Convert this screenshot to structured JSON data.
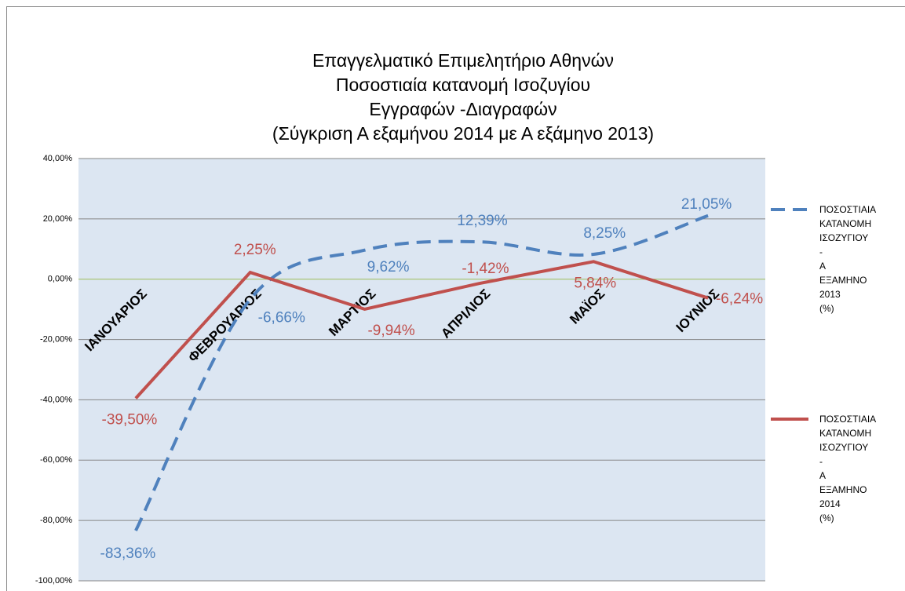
{
  "chart_data": {
    "type": "line",
    "title": "Επαγγελματικό Επιμελητήριο Αθηνών\nΠοσοστιαία κατανομή Ισοζυγίου\nΕγγραφών -Διαγραφών\n(Σύγκριση Α εξαμήνου 2014 με Α εξάμηνο 2013)",
    "categories": [
      "ΙΑΝΟΥΑΡΙΟΣ",
      "ΦΕΒΡΟΥΑΡΙΟΣ",
      "ΜΑΡΤΙΟΣ",
      "ΑΠΡΙΛΙΟΣ",
      "ΜΑΪΟΣ",
      "ΙΟΥΝΙΟΣ"
    ],
    "series": [
      {
        "name": "ΠΟΣΟΣΤΙΑΙΑ ΚΑΤΑΝΟΜΗ ΙΣΟΖΥΓΙΟΥ - Α ΕΞΑΜΗΝΟ 2013 (%)",
        "color": "#4f81bd",
        "dash": true,
        "values": [
          -83.36,
          -6.66,
          9.62,
          12.39,
          8.25,
          21.05
        ],
        "value_labels": [
          "-83,36%",
          "-6,66%",
          "9,62%",
          "12,39%",
          "8,25%",
          "21,05%"
        ]
      },
      {
        "name": "ΠΟΣΟΣΤΙΑΙΑ ΚΑΤΑΝΟΜΗ ΙΣΟΖΥΓΙΟΥ - Α ΕΞΑΜΗΝΟ 2014 (%)",
        "color": "#c0504d",
        "dash": false,
        "values": [
          -39.5,
          2.25,
          -9.94,
          -1.42,
          5.84,
          -6.24
        ],
        "value_labels": [
          "-39,50%",
          "2,25%",
          "-9,94%",
          "-1,42%",
          "5,84%",
          "-6,24%"
        ]
      }
    ],
    "ylim": [
      -100,
      40
    ],
    "yticks": [
      {
        "value": -100,
        "label": "-100,00%"
      },
      {
        "value": -80,
        "label": "-80,00%"
      },
      {
        "value": -60,
        "label": "-60,00%"
      },
      {
        "value": -40,
        "label": "-40,00%"
      },
      {
        "value": -20,
        "label": "-20,00%"
      },
      {
        "value": 0,
        "label": "0,00%"
      },
      {
        "value": 20,
        "label": "20,00%"
      },
      {
        "value": 40,
        "label": "40,00%"
      }
    ],
    "grid": true,
    "legend": "right"
  }
}
